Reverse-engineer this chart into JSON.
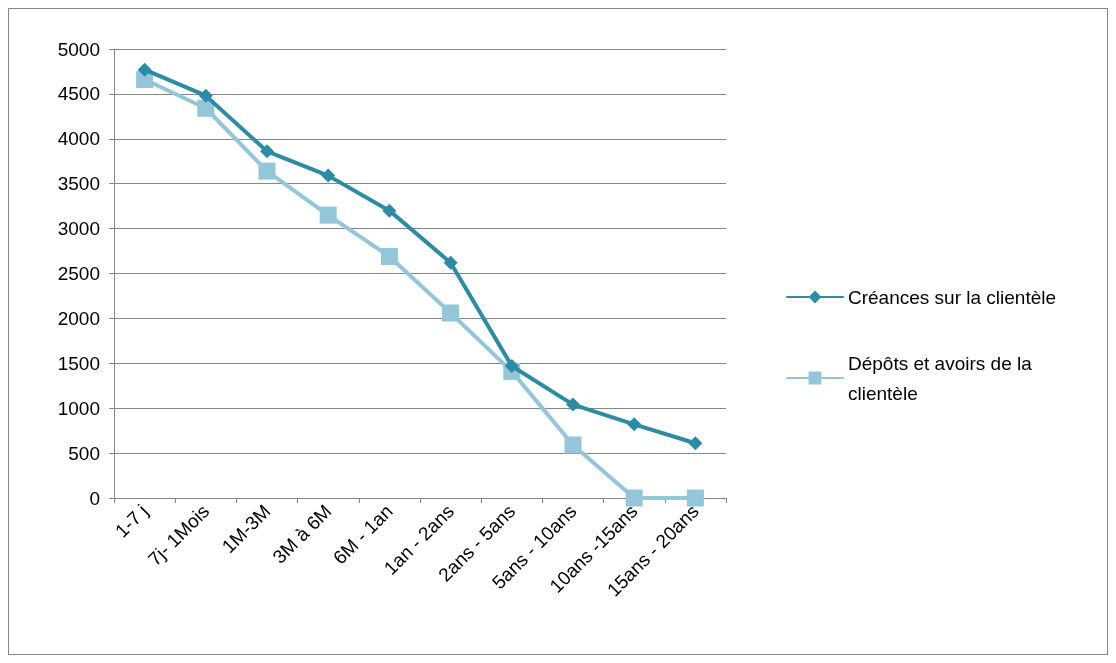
{
  "chart_data": {
    "type": "line",
    "categories": [
      "1-7 j",
      "7j- 1Mois",
      "1M-3M",
      "3M à 6M",
      "6M - 1an",
      "1an - 2ans",
      "2ans - 5ans",
      "5ans - 10ans",
      "10ans -15ans",
      "15ans - 20ans"
    ],
    "series": [
      {
        "name": "Créances sur la clientèle",
        "color": "#2e8ba6",
        "marker": "diamond",
        "values": [
          4770,
          4480,
          3860,
          3590,
          3200,
          2620,
          1470,
          1040,
          820,
          610
        ]
      },
      {
        "name": "Dépôts et avoirs de la clientèle",
        "color": "#93c6d8",
        "marker": "square",
        "values": [
          4660,
          4340,
          3640,
          3150,
          2690,
          2060,
          1410,
          590,
          0,
          0
        ]
      }
    ],
    "ylim": [
      0,
      5000
    ],
    "yticks": [
      0,
      500,
      1000,
      1500,
      2000,
      2500,
      3000,
      3500,
      4000,
      4500,
      5000
    ],
    "grid": "y",
    "legend": "right",
    "line_style": "solid"
  }
}
